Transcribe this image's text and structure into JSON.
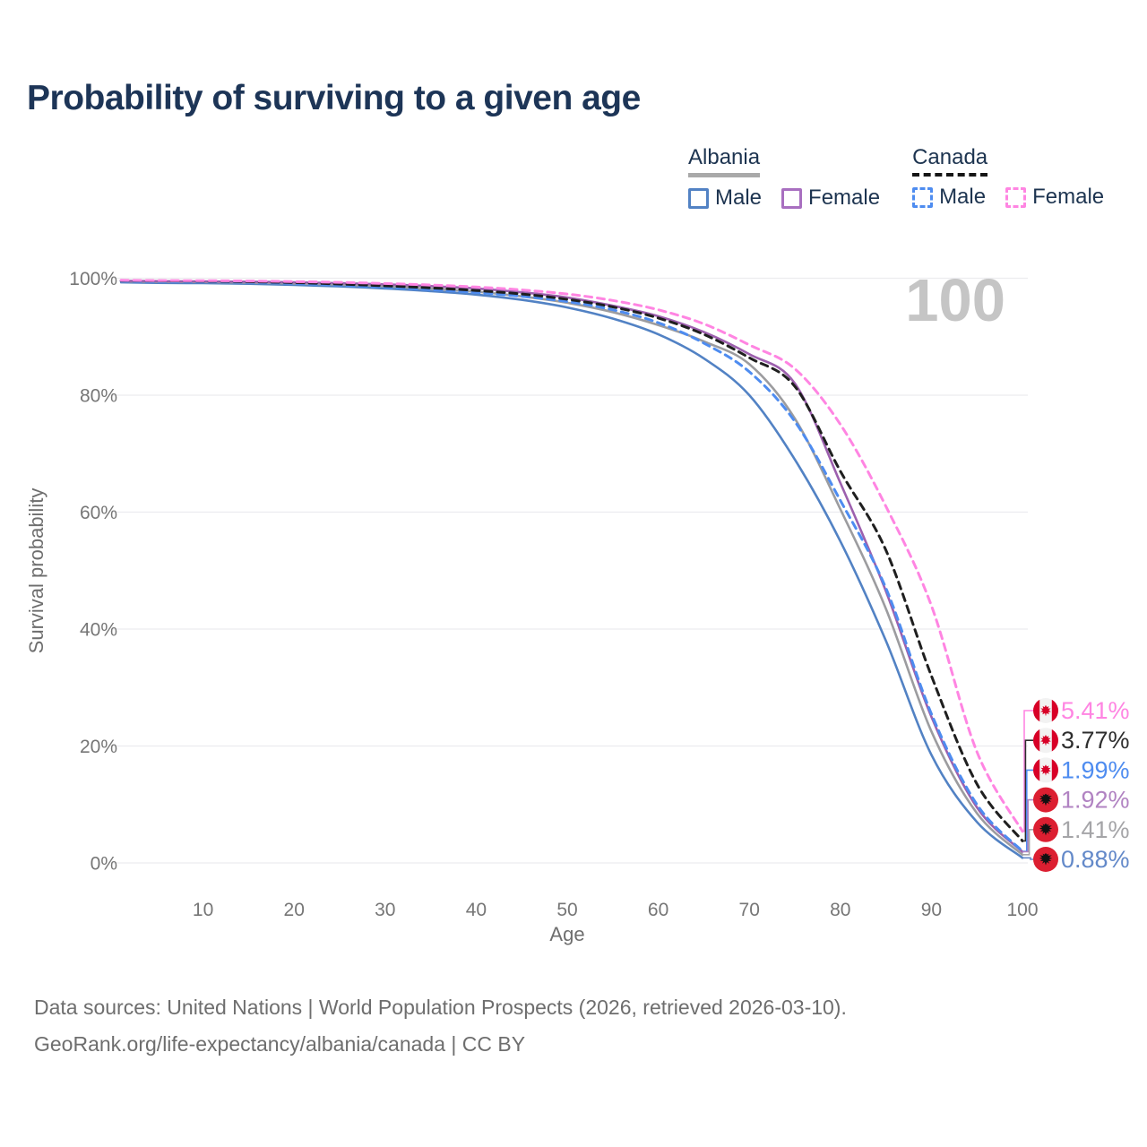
{
  "title": "Probability of surviving to a given age",
  "watermark_age": "100",
  "legend": {
    "groups": [
      {
        "country": "Albania",
        "line_style": "solid",
        "items": [
          {
            "label": "Male",
            "color": "#5282c4"
          },
          {
            "label": "Female",
            "color": "#a86fc0"
          }
        ]
      },
      {
        "country": "Canada",
        "line_style": "dashed",
        "items": [
          {
            "label": "Male",
            "color": "#4e8cf0"
          },
          {
            "label": "Female",
            "color": "#ff85e2"
          }
        ]
      }
    ]
  },
  "chart_data": {
    "type": "line",
    "title": "Probability of surviving to a given age",
    "xlabel": "Age",
    "ylabel": "Survival probability",
    "xlim": [
      0,
      100
    ],
    "ylim": [
      0,
      100
    ],
    "grid": true,
    "legend_position": "top-right",
    "x_ticks": [
      "10",
      "20",
      "30",
      "40",
      "50",
      "60",
      "70",
      "80",
      "90",
      "100"
    ],
    "x_tick_values": [
      10,
      20,
      30,
      40,
      50,
      60,
      70,
      80,
      90,
      100
    ],
    "y_ticks": [
      "0%",
      "20%",
      "40%",
      "60%",
      "80%",
      "100%"
    ],
    "y_tick_values": [
      0,
      20,
      40,
      60,
      80,
      100
    ],
    "x": [
      1,
      5,
      10,
      15,
      20,
      25,
      30,
      35,
      40,
      45,
      50,
      55,
      60,
      65,
      70,
      75,
      80,
      85,
      90,
      95,
      100
    ],
    "series": [
      {
        "id": "albania-male",
        "name": "Albania Male",
        "country": "Albania",
        "sex": "Male",
        "flag": "albania",
        "line_style": "solid",
        "color": "#5282c4",
        "label_color": "#6389c9",
        "end_label": "0.88%",
        "end_value": 0.88,
        "values": [
          99.3,
          99.2,
          99.15,
          99.05,
          98.85,
          98.6,
          98.25,
          97.8,
          97.2,
          96.3,
          95.0,
          93.1,
          90.4,
          86.3,
          80.0,
          69.0,
          55.0,
          38.0,
          18.5,
          7.0,
          0.88
        ]
      },
      {
        "id": "albania-both",
        "name": "Albania Both sexes",
        "country": "Albania",
        "sex": "Both sexes",
        "flag": "albania",
        "line_style": "solid",
        "color": "#9c9c9f",
        "label_color": "#a5a5a8",
        "end_label": "1.41%",
        "end_value": 1.41,
        "values": [
          99.45,
          99.4,
          99.35,
          99.25,
          99.1,
          98.9,
          98.6,
          98.2,
          97.7,
          96.9,
          95.8,
          94.2,
          92.0,
          89.2,
          85.3,
          76.0,
          60.5,
          43.5,
          22.5,
          8.5,
          1.41
        ]
      },
      {
        "id": "albania-female",
        "name": "Albania Female",
        "country": "Albania",
        "sex": "Female",
        "flag": "albania",
        "line_style": "solid",
        "color": "#9d60ae",
        "label_color": "#b183c2",
        "end_label": "1.92%",
        "end_value": 1.92,
        "values": [
          99.55,
          99.5,
          99.45,
          99.4,
          99.3,
          99.15,
          98.95,
          98.65,
          98.25,
          97.6,
          96.7,
          95.3,
          93.5,
          90.8,
          87.0,
          82.0,
          65.0,
          46.5,
          25.0,
          9.5,
          1.92
        ]
      },
      {
        "id": "canada-male",
        "name": "Canada Male",
        "country": "Canada",
        "sex": "Male",
        "flag": "canada",
        "line_style": "dashed",
        "color": "#4e8cf0",
        "label_color": "#4e8cf0",
        "end_label": "1.99%",
        "end_value": 1.99,
        "values": [
          99.5,
          99.45,
          99.4,
          99.3,
          99.1,
          98.8,
          98.45,
          98.05,
          97.55,
          96.9,
          96.0,
          94.6,
          92.4,
          88.9,
          84.0,
          75.5,
          62.0,
          47.0,
          25.5,
          10.0,
          1.99
        ]
      },
      {
        "id": "canada-both",
        "name": "Canada Both sexes",
        "country": "Canada",
        "sex": "Both sexes",
        "flag": "canada",
        "line_style": "dashed",
        "color": "#1f1f1f",
        "label_color": "#2e2e2e",
        "end_label": "3.77%",
        "end_value": 3.77,
        "values": [
          99.6,
          99.55,
          99.5,
          99.4,
          99.25,
          99.0,
          98.7,
          98.35,
          97.9,
          97.3,
          96.4,
          95.1,
          93.2,
          90.4,
          86.4,
          81.5,
          67.0,
          53.5,
          32.0,
          13.5,
          3.77
        ]
      },
      {
        "id": "canada-female",
        "name": "Canada Female",
        "country": "Canada",
        "sex": "Female",
        "flag": "canada",
        "line_style": "dashed",
        "color": "#ff85e2",
        "label_color": "#ff85e2",
        "end_label": "5.41%",
        "end_value": 5.41,
        "values": [
          99.65,
          99.6,
          99.58,
          99.52,
          99.42,
          99.3,
          99.1,
          98.85,
          98.5,
          98.0,
          97.3,
          96.2,
          94.6,
          92.2,
          88.6,
          84.5,
          75.0,
          61.0,
          44.0,
          19.0,
          5.41
        ]
      }
    ]
  },
  "flag_colors": {
    "albania_red": "#dc1f31",
    "canada_red": "#d80027"
  },
  "footer": {
    "line1": "Data sources: United Nations | World Population Prospects (2026, retrieved 2026-03-10).",
    "line2": "GeoRank.org/life-expectancy/albania/canada | CC BY"
  }
}
